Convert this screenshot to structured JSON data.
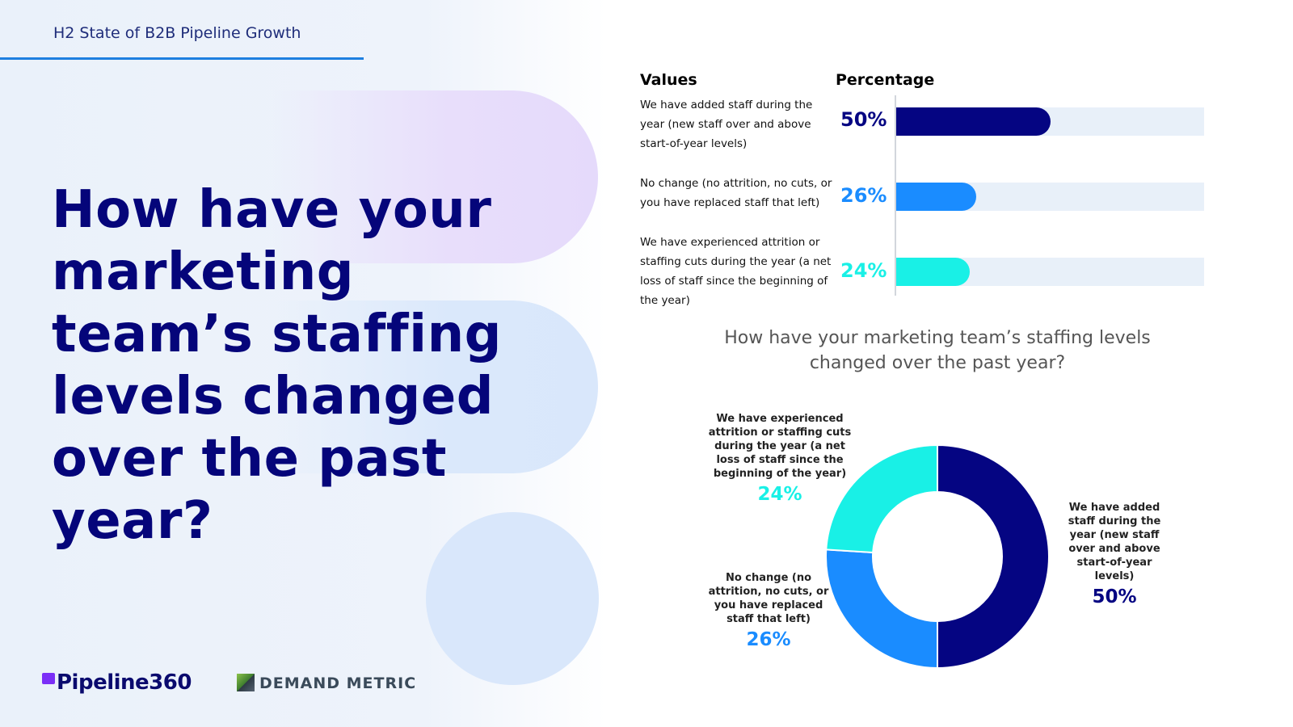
{
  "header": {
    "title": "H2 State of B2B Pipeline Growth"
  },
  "headline": "How have your marketing team’s staffing levels changed over the past year?",
  "logos": {
    "pipeline": "Pipeline360",
    "demand": "DEMAND METRIC"
  },
  "colors": {
    "navy": "#050582",
    "blue": "#1a8cff",
    "cyan": "#19f0e6",
    "headline": "#05057a",
    "track": "#e8f0f9"
  },
  "chart_data": [
    {
      "type": "bar",
      "orientation": "horizontal",
      "column_headers": {
        "values": "Values",
        "percentage": "Percentage"
      },
      "categories": [
        "We have added staff during the year (new staff over and above start-of-year levels)",
        "No change (no attrition, no cuts, or you have replaced staff that left)",
        "We have experienced attrition or staffing cuts during the year (a net loss of staff since the beginning of the year)"
      ],
      "values": [
        50,
        26,
        24
      ],
      "value_labels": [
        "50%",
        "26%",
        "24%"
      ],
      "colors": [
        "#050582",
        "#1a8cff",
        "#19f0e6"
      ],
      "xlim": [
        0,
        100
      ]
    },
    {
      "type": "pie",
      "style": "donut",
      "title": "How have your marketing team’s staffing levels changed over the past year?",
      "slices": [
        {
          "label": "We have added staff during the year (new staff over and above start-of-year levels)",
          "value": 50,
          "value_label": "50%",
          "color": "#050582"
        },
        {
          "label": "No change (no attrition, no cuts, or you have replaced staff that left)",
          "value": 26,
          "value_label": "26%",
          "color": "#1a8cff"
        },
        {
          "label": "We have experienced attrition or staffing cuts during the year (a net loss of staff since the beginning of the year)",
          "value": 24,
          "value_label": "24%",
          "color": "#19f0e6"
        }
      ]
    }
  ]
}
